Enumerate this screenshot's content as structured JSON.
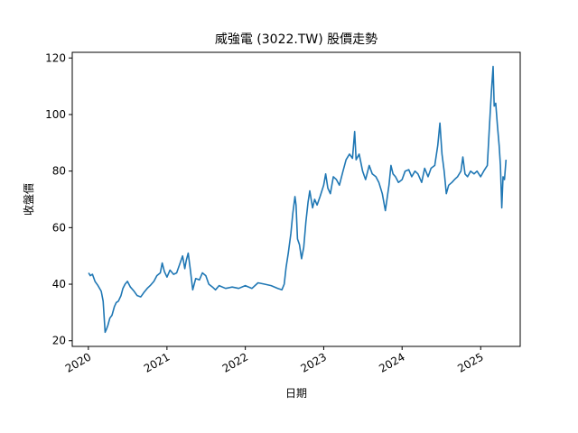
{
  "chart_data": {
    "type": "line",
    "title": "威強電 (3022.TW) 股價走勢",
    "xlabel": "日期",
    "ylabel": "收盤價",
    "xlim": [
      "2019-10-18",
      "2025-07-04"
    ],
    "ylim": [
      18,
      122
    ],
    "x_ticks": [
      {
        "date": "2020-01-01",
        "label": "2020"
      },
      {
        "date": "2021-01-01",
        "label": "2021"
      },
      {
        "date": "2022-01-01",
        "label": "2022"
      },
      {
        "date": "2023-01-01",
        "label": "2023"
      },
      {
        "date": "2024-01-01",
        "label": "2024"
      },
      {
        "date": "2025-01-01",
        "label": "2025"
      }
    ],
    "y_ticks": [
      20,
      40,
      60,
      80,
      100,
      120
    ],
    "grid": false,
    "series": [
      {
        "color": "#1f77b4",
        "points": [
          [
            "2020-01-02",
            44
          ],
          [
            "2020-01-10",
            43
          ],
          [
            "2020-01-20",
            43.5
          ],
          [
            "2020-02-01",
            41
          ],
          [
            "2020-02-15",
            39.5
          ],
          [
            "2020-03-01",
            37.5
          ],
          [
            "2020-03-10",
            34
          ],
          [
            "2020-03-19",
            23
          ],
          [
            "2020-03-25",
            24
          ],
          [
            "2020-04-01",
            25.5
          ],
          [
            "2020-04-10",
            28
          ],
          [
            "2020-04-20",
            29
          ],
          [
            "2020-05-01",
            32
          ],
          [
            "2020-05-10",
            33.5
          ],
          [
            "2020-05-20",
            34
          ],
          [
            "2020-06-01",
            36
          ],
          [
            "2020-06-10",
            38.5
          ],
          [
            "2020-06-20",
            40
          ],
          [
            "2020-07-01",
            41
          ],
          [
            "2020-07-15",
            39
          ],
          [
            "2020-08-01",
            37.5
          ],
          [
            "2020-08-15",
            36
          ],
          [
            "2020-09-01",
            35.5
          ],
          [
            "2020-09-15",
            37
          ],
          [
            "2020-10-01",
            38.5
          ],
          [
            "2020-10-15",
            39.5
          ],
          [
            "2020-11-01",
            41
          ],
          [
            "2020-11-15",
            43
          ],
          [
            "2020-12-01",
            44
          ],
          [
            "2020-12-10",
            47.5
          ],
          [
            "2020-12-20",
            44.5
          ],
          [
            "2021-01-01",
            42.5
          ],
          [
            "2021-01-15",
            45
          ],
          [
            "2021-02-01",
            43.5
          ],
          [
            "2021-02-15",
            44
          ],
          [
            "2021-03-01",
            47
          ],
          [
            "2021-03-15",
            50
          ],
          [
            "2021-03-25",
            45.5
          ],
          [
            "2021-04-01",
            48.5
          ],
          [
            "2021-04-10",
            51
          ],
          [
            "2021-04-20",
            45
          ],
          [
            "2021-05-01",
            38
          ],
          [
            "2021-05-15",
            42
          ],
          [
            "2021-06-01",
            41.5
          ],
          [
            "2021-06-15",
            44
          ],
          [
            "2021-07-01",
            43
          ],
          [
            "2021-07-15",
            40
          ],
          [
            "2021-08-01",
            39
          ],
          [
            "2021-08-15",
            38
          ],
          [
            "2021-09-01",
            39.5
          ],
          [
            "2021-10-01",
            38.5
          ],
          [
            "2021-11-01",
            39
          ],
          [
            "2021-12-01",
            38.5
          ],
          [
            "2022-01-01",
            39.5
          ],
          [
            "2022-02-01",
            38.5
          ],
          [
            "2022-03-01",
            40.5
          ],
          [
            "2022-04-01",
            40
          ],
          [
            "2022-05-01",
            39.5
          ],
          [
            "2022-06-01",
            38.5
          ],
          [
            "2022-06-20",
            38
          ],
          [
            "2022-07-01",
            40
          ],
          [
            "2022-07-10",
            46
          ],
          [
            "2022-07-20",
            51
          ],
          [
            "2022-08-01",
            58
          ],
          [
            "2022-08-10",
            65
          ],
          [
            "2022-08-20",
            71
          ],
          [
            "2022-08-25",
            68
          ],
          [
            "2022-09-01",
            56
          ],
          [
            "2022-09-10",
            54
          ],
          [
            "2022-09-20",
            49
          ],
          [
            "2022-09-30",
            53
          ],
          [
            "2022-10-10",
            62
          ],
          [
            "2022-10-20",
            69
          ],
          [
            "2022-10-28",
            73
          ],
          [
            "2022-11-10",
            67
          ],
          [
            "2022-11-20",
            70
          ],
          [
            "2022-12-01",
            68
          ],
          [
            "2022-12-15",
            71
          ],
          [
            "2023-01-01",
            75
          ],
          [
            "2023-01-10",
            79
          ],
          [
            "2023-01-20",
            74
          ],
          [
            "2023-02-01",
            72
          ],
          [
            "2023-02-15",
            78
          ],
          [
            "2023-03-01",
            77
          ],
          [
            "2023-03-15",
            75
          ],
          [
            "2023-04-01",
            80
          ],
          [
            "2023-04-15",
            84
          ],
          [
            "2023-05-01",
            86
          ],
          [
            "2023-05-15",
            84.5
          ],
          [
            "2023-05-25",
            94
          ],
          [
            "2023-06-01",
            84
          ],
          [
            "2023-06-15",
            86
          ],
          [
            "2023-07-01",
            80
          ],
          [
            "2023-07-15",
            77
          ],
          [
            "2023-08-01",
            82
          ],
          [
            "2023-08-15",
            79
          ],
          [
            "2023-09-01",
            78
          ],
          [
            "2023-09-15",
            76
          ],
          [
            "2023-10-01",
            72
          ],
          [
            "2023-10-15",
            66
          ],
          [
            "2023-11-01",
            75
          ],
          [
            "2023-11-10",
            82
          ],
          [
            "2023-11-20",
            79
          ],
          [
            "2023-12-01",
            78
          ],
          [
            "2023-12-15",
            76
          ],
          [
            "2024-01-01",
            77
          ],
          [
            "2024-01-15",
            80
          ],
          [
            "2024-02-01",
            80.5
          ],
          [
            "2024-02-15",
            78
          ],
          [
            "2024-03-01",
            80
          ],
          [
            "2024-03-15",
            79
          ],
          [
            "2024-04-01",
            76
          ],
          [
            "2024-04-15",
            81
          ],
          [
            "2024-05-01",
            78
          ],
          [
            "2024-05-15",
            81
          ],
          [
            "2024-06-01",
            82
          ],
          [
            "2024-06-15",
            89
          ],
          [
            "2024-06-25",
            97
          ],
          [
            "2024-07-05",
            86
          ],
          [
            "2024-07-15",
            80
          ],
          [
            "2024-07-25",
            72
          ],
          [
            "2024-08-05",
            75
          ],
          [
            "2024-08-20",
            76
          ],
          [
            "2024-09-01",
            77
          ],
          [
            "2024-09-15",
            78
          ],
          [
            "2024-10-01",
            80
          ],
          [
            "2024-10-10",
            85
          ],
          [
            "2024-10-20",
            79
          ],
          [
            "2024-11-01",
            78
          ],
          [
            "2024-11-15",
            80
          ],
          [
            "2024-12-01",
            79
          ],
          [
            "2024-12-15",
            80
          ],
          [
            "2025-01-01",
            78
          ],
          [
            "2025-01-15",
            80
          ],
          [
            "2025-02-01",
            82
          ],
          [
            "2025-02-10",
            95
          ],
          [
            "2025-02-20",
            108
          ],
          [
            "2025-02-28",
            117
          ],
          [
            "2025-03-05",
            103
          ],
          [
            "2025-03-12",
            104
          ],
          [
            "2025-03-20",
            96
          ],
          [
            "2025-03-28",
            89
          ],
          [
            "2025-04-03",
            82
          ],
          [
            "2025-04-09",
            67
          ],
          [
            "2025-04-15",
            78
          ],
          [
            "2025-04-22",
            77
          ],
          [
            "2025-04-29",
            84
          ]
        ]
      }
    ]
  }
}
